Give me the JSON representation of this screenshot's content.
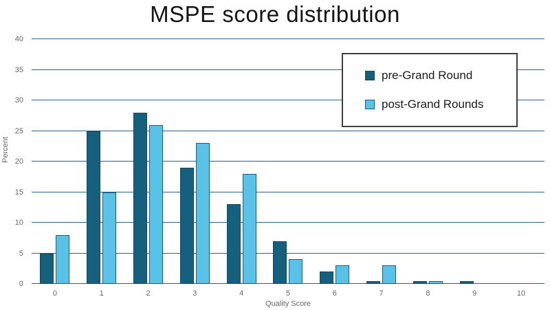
{
  "chart_data": {
    "type": "bar",
    "title": "MSPE score distribution",
    "xlabel": "Quality Score",
    "ylabel": "Percent",
    "ylim": [
      0,
      40
    ],
    "yticks": [
      0,
      5,
      10,
      15,
      20,
      25,
      30,
      35,
      40
    ],
    "categories": [
      "0",
      "1",
      "2",
      "3",
      "4",
      "5",
      "6",
      "7",
      "8",
      "9",
      "10"
    ],
    "series": [
      {
        "name": "pre-Grand Round",
        "key": "pre",
        "color": "#16607e",
        "border_color": "#10485f",
        "values": [
          5,
          25,
          28,
          19,
          13,
          7,
          2,
          0.5,
          0.5,
          0.5,
          0
        ]
      },
      {
        "name": "post-Grand Rounds",
        "key": "post",
        "color": "#5bc2e7",
        "border_color": "#16607e",
        "values": [
          8,
          15,
          26,
          23,
          18,
          4,
          3,
          3,
          0.5,
          0,
          0
        ]
      }
    ],
    "grid": true,
    "grid_color": "#2a5f8f",
    "legend_position": "top-right"
  }
}
